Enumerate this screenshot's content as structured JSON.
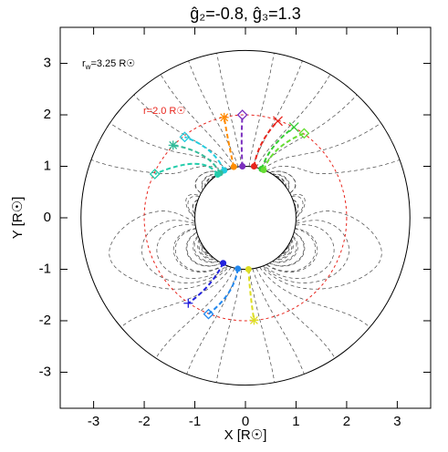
{
  "chart_data": {
    "type": "scatter",
    "title": "ĝ₂=-0.8, ĝ₃=1.3",
    "xlabel": "X [R☉]",
    "ylabel": "Y [R☉]",
    "xlim": [
      -3.66,
      3.66
    ],
    "ylim": [
      -3.7,
      3.7
    ],
    "xticks": [
      -3,
      -2,
      -1,
      0,
      1,
      2,
      3
    ],
    "yticks": [
      -3,
      -2,
      -1,
      0,
      1,
      2,
      3
    ],
    "g2": -0.8,
    "g3": 1.3,
    "source_surface": {
      "radius": 3.25,
      "label": "r",
      "subscript": "w",
      "text": "=3.25 R☉"
    },
    "reference_circle": {
      "radius": 2.0,
      "label": "r=2.0 R☉",
      "color": "#e8241c"
    },
    "sun_radius": 1,
    "tracks": [
      {
        "color": "#7b2fbf",
        "marker": "diamond",
        "x": [
          -0.06,
          -0.06
        ],
        "y": [
          1.0,
          2.0
        ]
      },
      {
        "color": "#ff8c00",
        "marker": "star",
        "x": [
          -0.23,
          -0.42
        ],
        "y": [
          0.99,
          1.95
        ]
      },
      {
        "color": "#e8241c",
        "marker": "x",
        "x": [
          0.17,
          0.64
        ],
        "y": [
          1.0,
          1.88
        ]
      },
      {
        "color": "#33cc33",
        "marker": "x",
        "x": [
          0.32,
          0.96
        ],
        "y": [
          0.95,
          1.76
        ]
      },
      {
        "color": "#66dd33",
        "marker": "diamond",
        "x": [
          0.36,
          1.16
        ],
        "y": [
          0.93,
          1.64
        ]
      },
      {
        "color": "#22ccdd",
        "marker": "diamond",
        "x": [
          -0.42,
          -1.2
        ],
        "y": [
          0.92,
          1.57
        ]
      },
      {
        "color": "#33bb99",
        "marker": "star",
        "x": [
          -0.5,
          -1.43
        ],
        "y": [
          0.87,
          1.41
        ]
      },
      {
        "color": "#22ccaa",
        "marker": "diamond",
        "x": [
          -0.55,
          -1.79
        ],
        "y": [
          0.84,
          0.85
        ]
      },
      {
        "color": "#2222dd",
        "marker": "plus",
        "x": [
          -0.44,
          -1.13
        ],
        "y": [
          -0.88,
          -1.66
        ]
      },
      {
        "color": "#2288ee",
        "marker": "diamond",
        "x": [
          -0.15,
          -0.73
        ],
        "y": [
          -0.99,
          -1.87
        ]
      },
      {
        "color": "#dddd22",
        "marker": "star",
        "x": [
          0.06,
          0.17
        ],
        "y": [
          -1.0,
          -1.99
        ]
      }
    ]
  }
}
